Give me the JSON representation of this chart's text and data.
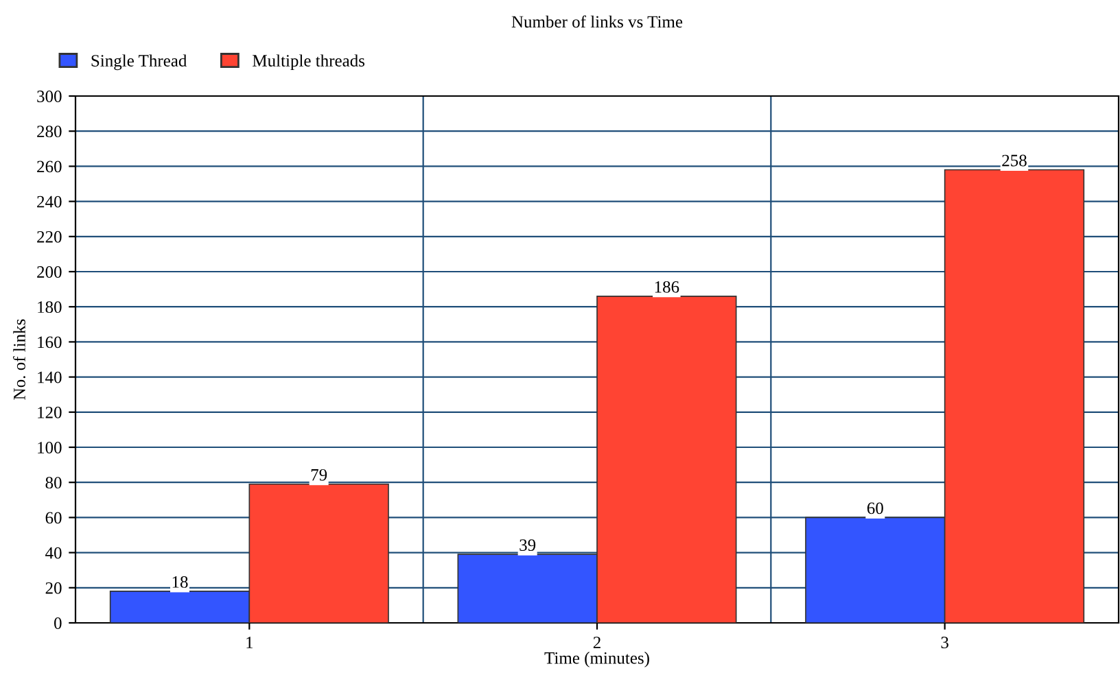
{
  "chart_data": {
    "type": "bar",
    "title": "Number of links vs Time",
    "xlabel": "Time (minutes)",
    "ylabel": "No. of links",
    "categories": [
      "1",
      "2",
      "3"
    ],
    "series": [
      {
        "name": "Single Thread",
        "color": "#3355ff",
        "values": [
          18,
          39,
          60
        ]
      },
      {
        "name": "Multiple threads",
        "color": "#ff4433",
        "values": [
          79,
          186,
          258
        ]
      }
    ],
    "ylim": [
      0,
      300
    ],
    "yticks": [
      0,
      20,
      40,
      60,
      80,
      100,
      120,
      140,
      160,
      180,
      200,
      220,
      240,
      260,
      280,
      300
    ],
    "grid": true,
    "legend": "top left",
    "data_labels": true
  }
}
